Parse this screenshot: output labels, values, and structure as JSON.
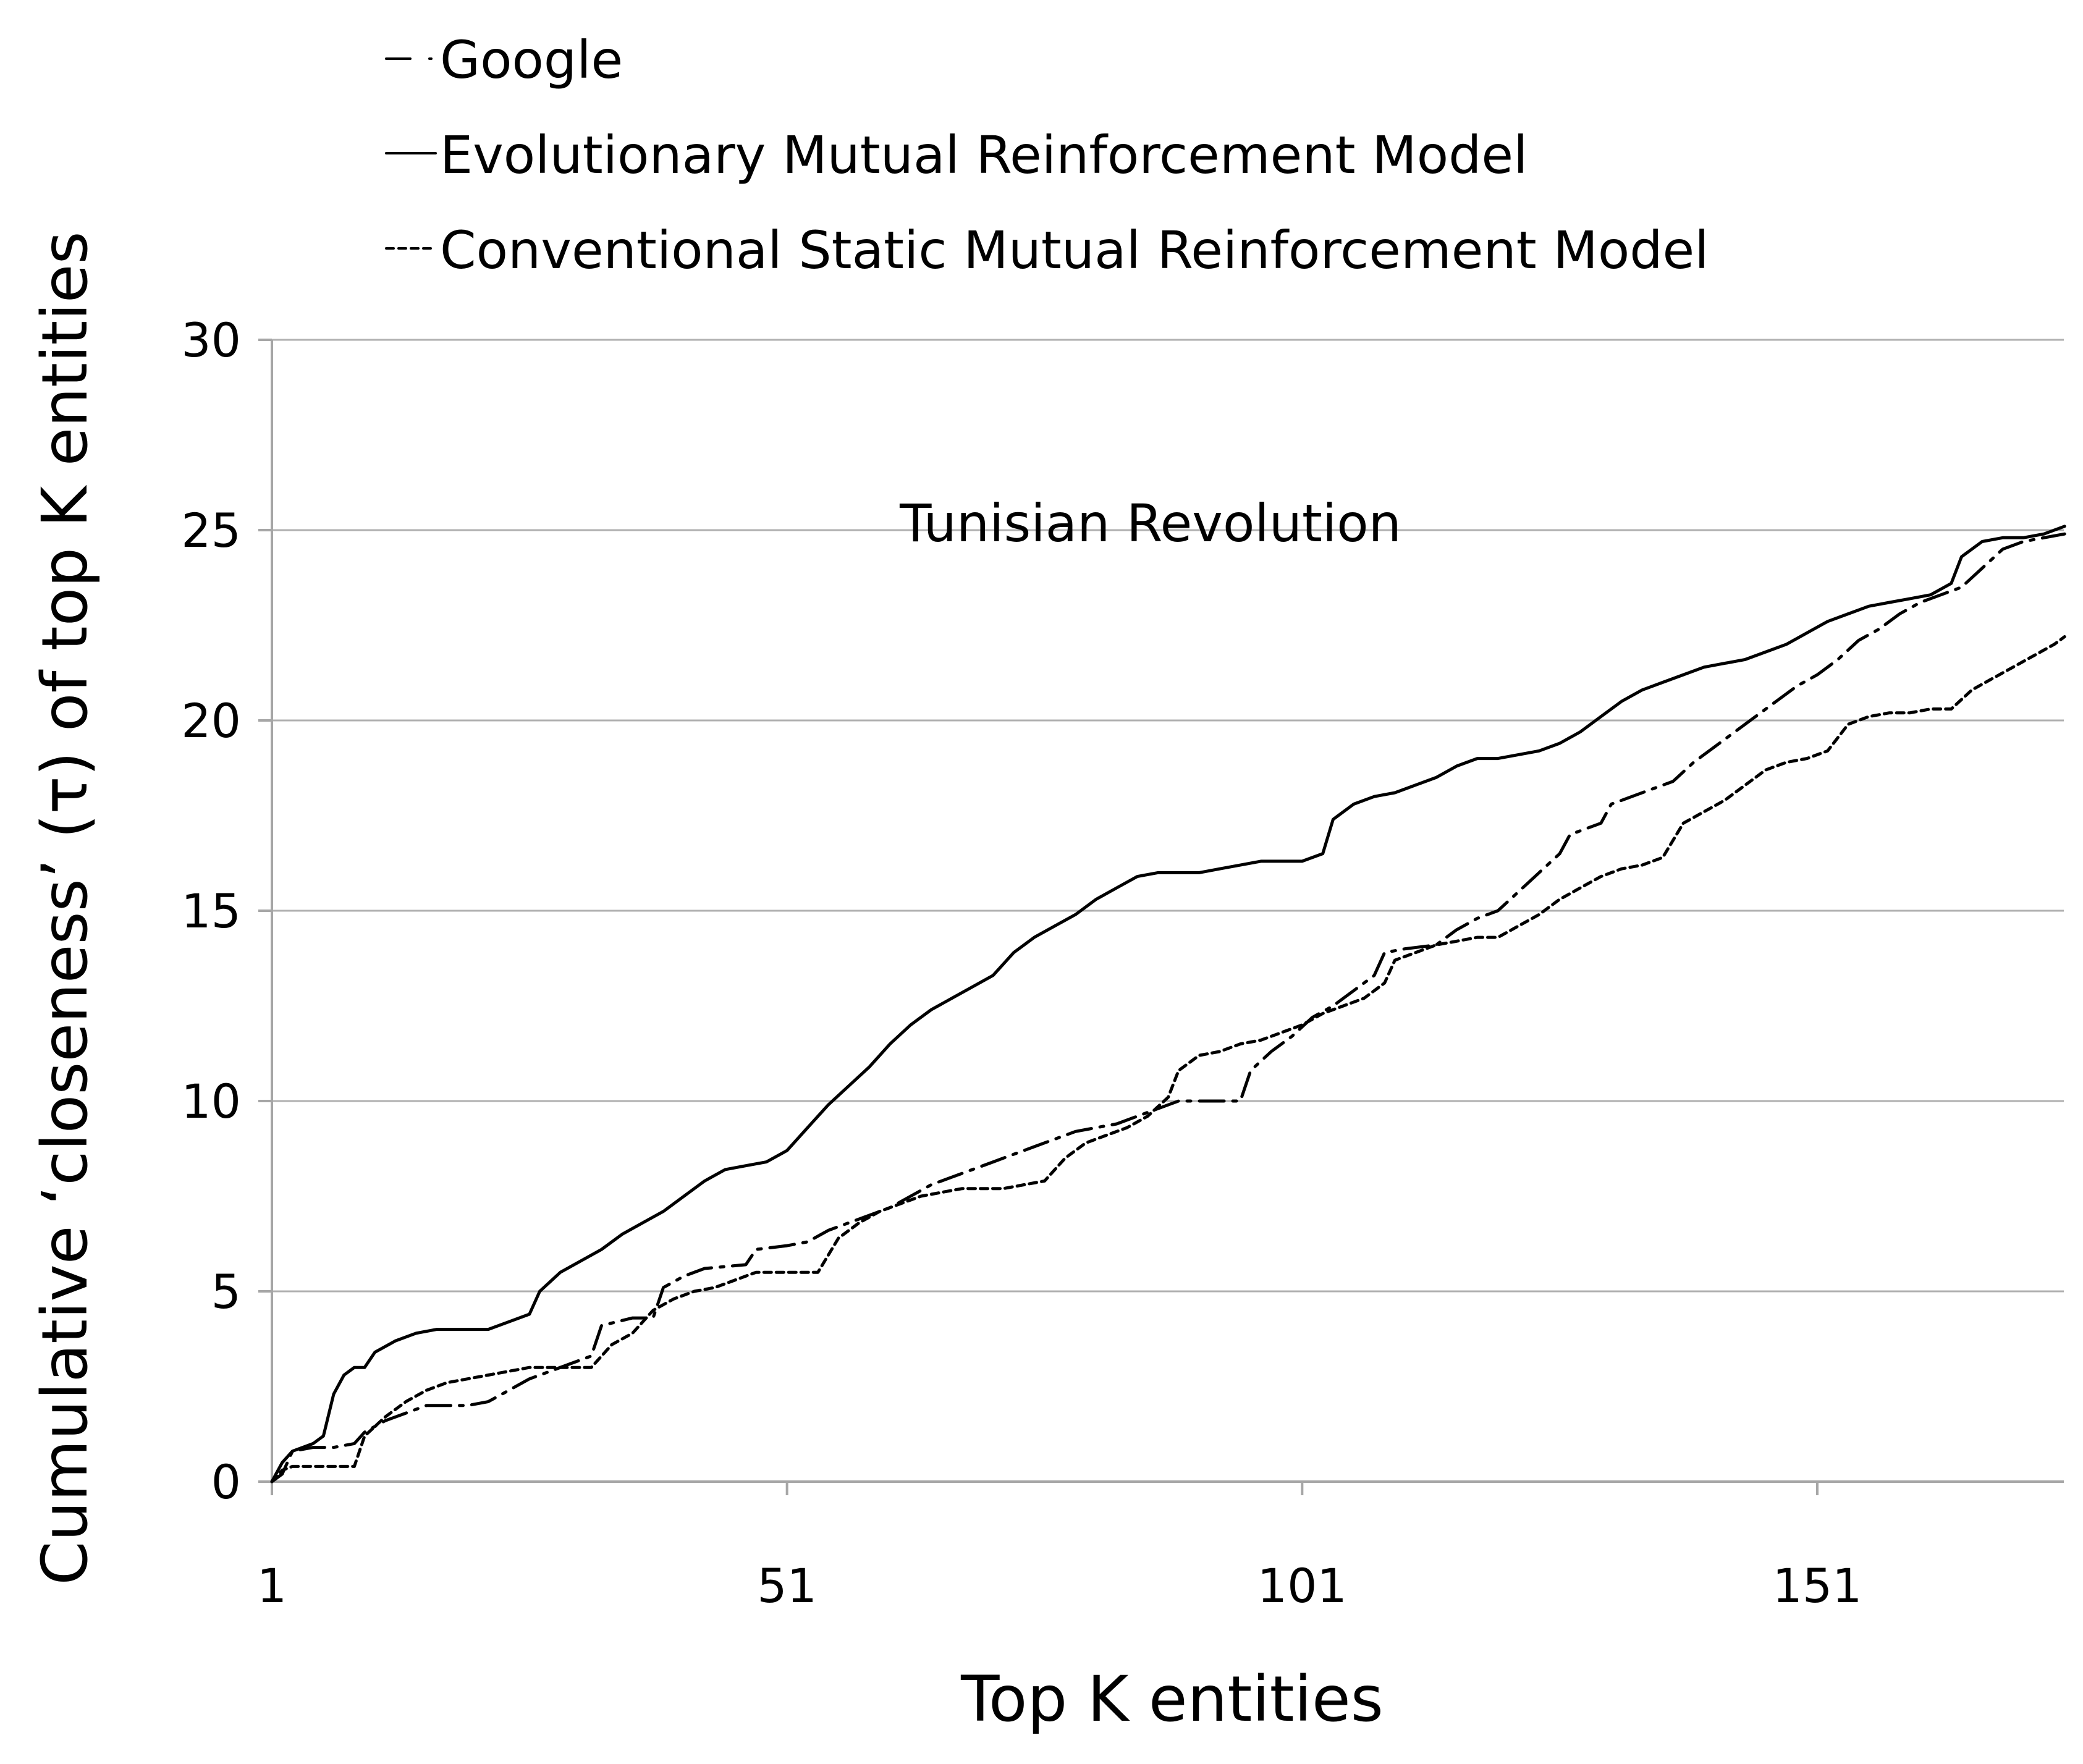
{
  "chart_data": {
    "type": "line",
    "title": "",
    "annotation": "Tunisian Revolution",
    "xlabel": "Top K entities",
    "ylabel": "Cumulative ‘closeness’ (τ) of top K entities",
    "xlim": [
      1,
      175
    ],
    "ylim": [
      0,
      30
    ],
    "xticks": [
      1,
      51,
      101,
      151
    ],
    "yticks": [
      0,
      5,
      10,
      15,
      20,
      25,
      30
    ],
    "grid": "horizontal",
    "legend_position": "top",
    "series": [
      {
        "name": "Google",
        "dash": "long-dash-dot",
        "points": [
          [
            1,
            0
          ],
          [
            2,
            0.2
          ],
          [
            3,
            0.8
          ],
          [
            5,
            0.9
          ],
          [
            7,
            0.9
          ],
          [
            9,
            1.0
          ],
          [
            10,
            1.3
          ],
          [
            12,
            1.6
          ],
          [
            14,
            1.8
          ],
          [
            16,
            2.0
          ],
          [
            20,
            2.0
          ],
          [
            22,
            2.1
          ],
          [
            24,
            2.4
          ],
          [
            26,
            2.7
          ],
          [
            28,
            2.9
          ],
          [
            30,
            3.1
          ],
          [
            32,
            3.3
          ],
          [
            33,
            4.1
          ],
          [
            36,
            4.3
          ],
          [
            38,
            4.3
          ],
          [
            39,
            5.1
          ],
          [
            41,
            5.4
          ],
          [
            43,
            5.6
          ],
          [
            47,
            5.7
          ],
          [
            48,
            6.1
          ],
          [
            51,
            6.2
          ],
          [
            53,
            6.3
          ],
          [
            55,
            6.6
          ],
          [
            57,
            6.8
          ],
          [
            59,
            7.0
          ],
          [
            61,
            7.2
          ],
          [
            63,
            7.5
          ],
          [
            65,
            7.8
          ],
          [
            67,
            8.0
          ],
          [
            69,
            8.2
          ],
          [
            71,
            8.4
          ],
          [
            73,
            8.6
          ],
          [
            75,
            8.8
          ],
          [
            77,
            9.0
          ],
          [
            79,
            9.2
          ],
          [
            81,
            9.3
          ],
          [
            83,
            9.4
          ],
          [
            85,
            9.6
          ],
          [
            87,
            9.8
          ],
          [
            89,
            10.0
          ],
          [
            91,
            10.0
          ],
          [
            93,
            10.0
          ],
          [
            95,
            10.0
          ],
          [
            96,
            10.8
          ],
          [
            98,
            11.3
          ],
          [
            100,
            11.7
          ],
          [
            102,
            12.2
          ],
          [
            104,
            12.5
          ],
          [
            106,
            12.9
          ],
          [
            108,
            13.3
          ],
          [
            109,
            13.9
          ],
          [
            111,
            14.0
          ],
          [
            114,
            14.1
          ],
          [
            116,
            14.5
          ],
          [
            118,
            14.8
          ],
          [
            120,
            15.0
          ],
          [
            122,
            15.5
          ],
          [
            124,
            16.0
          ],
          [
            126,
            16.5
          ],
          [
            127,
            17.0
          ],
          [
            130,
            17.3
          ],
          [
            131,
            17.8
          ],
          [
            133,
            18.0
          ],
          [
            135,
            18.2
          ],
          [
            137,
            18.4
          ],
          [
            139,
            18.9
          ],
          [
            141,
            19.3
          ],
          [
            143,
            19.7
          ],
          [
            145,
            20.1
          ],
          [
            147,
            20.5
          ],
          [
            149,
            20.9
          ],
          [
            151,
            21.2
          ],
          [
            153,
            21.6
          ],
          [
            155,
            22.1
          ],
          [
            157,
            22.4
          ],
          [
            159,
            22.8
          ],
          [
            161,
            23.1
          ],
          [
            163,
            23.3
          ],
          [
            165,
            23.5
          ],
          [
            167,
            24.0
          ],
          [
            169,
            24.5
          ],
          [
            171,
            24.7
          ],
          [
            173,
            24.8
          ],
          [
            175,
            24.9
          ]
        ]
      },
      {
        "name": "Evolutionary Mutual Reinforcement Model",
        "dash": "solid",
        "points": [
          [
            1,
            0
          ],
          [
            2,
            0.5
          ],
          [
            3,
            0.8
          ],
          [
            5,
            1.0
          ],
          [
            6,
            1.2
          ],
          [
            7,
            2.3
          ],
          [
            8,
            2.8
          ],
          [
            9,
            3.0
          ],
          [
            10,
            3.0
          ],
          [
            11,
            3.4
          ],
          [
            13,
            3.7
          ],
          [
            15,
            3.9
          ],
          [
            17,
            4.0
          ],
          [
            20,
            4.0
          ],
          [
            22,
            4.0
          ],
          [
            24,
            4.2
          ],
          [
            26,
            4.4
          ],
          [
            27,
            5.0
          ],
          [
            29,
            5.5
          ],
          [
            31,
            5.8
          ],
          [
            33,
            6.1
          ],
          [
            35,
            6.5
          ],
          [
            37,
            6.8
          ],
          [
            39,
            7.1
          ],
          [
            41,
            7.5
          ],
          [
            43,
            7.9
          ],
          [
            45,
            8.2
          ],
          [
            47,
            8.3
          ],
          [
            49,
            8.4
          ],
          [
            51,
            8.7
          ],
          [
            53,
            9.3
          ],
          [
            55,
            9.9
          ],
          [
            57,
            10.4
          ],
          [
            59,
            10.9
          ],
          [
            61,
            11.5
          ],
          [
            63,
            12.0
          ],
          [
            65,
            12.4
          ],
          [
            67,
            12.7
          ],
          [
            69,
            13.0
          ],
          [
            71,
            13.3
          ],
          [
            73,
            13.9
          ],
          [
            75,
            14.3
          ],
          [
            77,
            14.6
          ],
          [
            79,
            14.9
          ],
          [
            81,
            15.3
          ],
          [
            83,
            15.6
          ],
          [
            85,
            15.9
          ],
          [
            87,
            16.0
          ],
          [
            89,
            16.0
          ],
          [
            91,
            16.0
          ],
          [
            93,
            16.1
          ],
          [
            95,
            16.2
          ],
          [
            97,
            16.3
          ],
          [
            99,
            16.3
          ],
          [
            101,
            16.3
          ],
          [
            103,
            16.5
          ],
          [
            104,
            17.4
          ],
          [
            106,
            17.8
          ],
          [
            108,
            18.0
          ],
          [
            110,
            18.1
          ],
          [
            112,
            18.3
          ],
          [
            114,
            18.5
          ],
          [
            116,
            18.8
          ],
          [
            118,
            19.0
          ],
          [
            120,
            19.0
          ],
          [
            122,
            19.1
          ],
          [
            124,
            19.2
          ],
          [
            126,
            19.4
          ],
          [
            128,
            19.7
          ],
          [
            130,
            20.1
          ],
          [
            132,
            20.5
          ],
          [
            134,
            20.8
          ],
          [
            136,
            21.0
          ],
          [
            138,
            21.2
          ],
          [
            140,
            21.4
          ],
          [
            142,
            21.5
          ],
          [
            144,
            21.6
          ],
          [
            146,
            21.8
          ],
          [
            148,
            22.0
          ],
          [
            150,
            22.3
          ],
          [
            152,
            22.6
          ],
          [
            154,
            22.8
          ],
          [
            156,
            23.0
          ],
          [
            158,
            23.1
          ],
          [
            160,
            23.2
          ],
          [
            162,
            23.3
          ],
          [
            164,
            23.6
          ],
          [
            165,
            24.3
          ],
          [
            167,
            24.7
          ],
          [
            169,
            24.8
          ],
          [
            171,
            24.8
          ],
          [
            173,
            24.9
          ],
          [
            175,
            25.1
          ]
        ]
      },
      {
        "name": "Conventional Static Mutual Reinforcement Model",
        "dash": "short-dash",
        "points": [
          [
            1,
            0
          ],
          [
            2,
            0.3
          ],
          [
            3,
            0.4
          ],
          [
            5,
            0.4
          ],
          [
            7,
            0.4
          ],
          [
            9,
            0.4
          ],
          [
            10,
            1.2
          ],
          [
            12,
            1.7
          ],
          [
            14,
            2.1
          ],
          [
            16,
            2.4
          ],
          [
            18,
            2.6
          ],
          [
            20,
            2.7
          ],
          [
            22,
            2.8
          ],
          [
            24,
            2.9
          ],
          [
            26,
            3.0
          ],
          [
            28,
            3.0
          ],
          [
            30,
            3.0
          ],
          [
            32,
            3.0
          ],
          [
            34,
            3.6
          ],
          [
            36,
            3.9
          ],
          [
            38,
            4.5
          ],
          [
            40,
            4.8
          ],
          [
            42,
            5.0
          ],
          [
            44,
            5.1
          ],
          [
            46,
            5.3
          ],
          [
            48,
            5.5
          ],
          [
            50,
            5.5
          ],
          [
            52,
            5.5
          ],
          [
            54,
            5.5
          ],
          [
            56,
            6.4
          ],
          [
            58,
            6.8
          ],
          [
            60,
            7.1
          ],
          [
            62,
            7.3
          ],
          [
            64,
            7.5
          ],
          [
            66,
            7.6
          ],
          [
            68,
            7.7
          ],
          [
            70,
            7.7
          ],
          [
            72,
            7.7
          ],
          [
            74,
            7.8
          ],
          [
            76,
            7.9
          ],
          [
            78,
            8.5
          ],
          [
            80,
            8.9
          ],
          [
            82,
            9.1
          ],
          [
            84,
            9.3
          ],
          [
            86,
            9.6
          ],
          [
            88,
            10.1
          ],
          [
            89,
            10.8
          ],
          [
            91,
            11.2
          ],
          [
            93,
            11.3
          ],
          [
            95,
            11.5
          ],
          [
            97,
            11.6
          ],
          [
            99,
            11.8
          ],
          [
            101,
            12.0
          ],
          [
            103,
            12.3
          ],
          [
            105,
            12.5
          ],
          [
            107,
            12.7
          ],
          [
            109,
            13.1
          ],
          [
            110,
            13.7
          ],
          [
            112,
            13.9
          ],
          [
            114,
            14.1
          ],
          [
            116,
            14.2
          ],
          [
            118,
            14.3
          ],
          [
            120,
            14.3
          ],
          [
            122,
            14.6
          ],
          [
            124,
            14.9
          ],
          [
            126,
            15.3
          ],
          [
            128,
            15.6
          ],
          [
            130,
            15.9
          ],
          [
            132,
            16.1
          ],
          [
            134,
            16.2
          ],
          [
            136,
            16.4
          ],
          [
            138,
            17.3
          ],
          [
            140,
            17.6
          ],
          [
            142,
            17.9
          ],
          [
            144,
            18.3
          ],
          [
            146,
            18.7
          ],
          [
            148,
            18.9
          ],
          [
            150,
            19.0
          ],
          [
            152,
            19.2
          ],
          [
            154,
            19.9
          ],
          [
            156,
            20.1
          ],
          [
            158,
            20.2
          ],
          [
            160,
            20.2
          ],
          [
            162,
            20.3
          ],
          [
            164,
            20.3
          ],
          [
            166,
            20.8
          ],
          [
            168,
            21.1
          ],
          [
            170,
            21.4
          ],
          [
            172,
            21.7
          ],
          [
            174,
            22.0
          ],
          [
            175,
            22.2
          ]
        ]
      }
    ]
  }
}
